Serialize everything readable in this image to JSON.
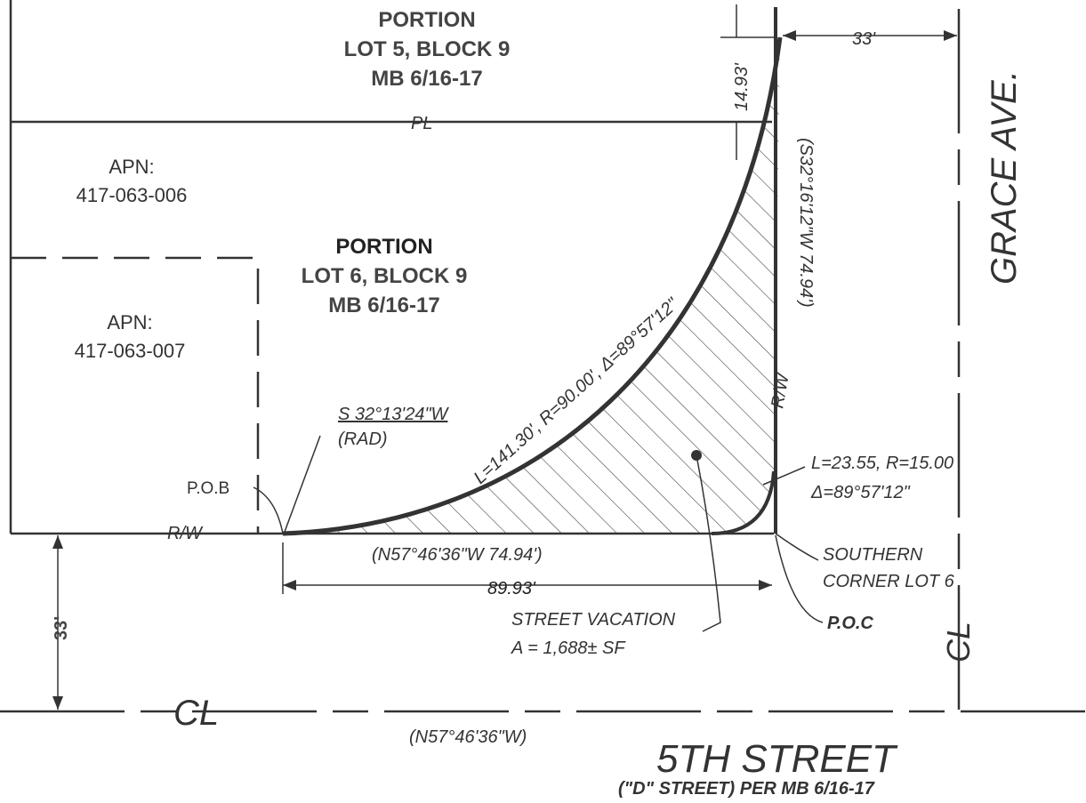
{
  "lot5": {
    "portion": "PORTION",
    "lot": "LOT 5, BLOCK 9",
    "map": "MB 6/16-17"
  },
  "property_line": "PL",
  "apn_006": {
    "label": "APN:",
    "number": "417-063-006"
  },
  "apn_007": {
    "label": "APN:",
    "number": "417-063-007"
  },
  "lot6": {
    "portion": "PORTION",
    "lot": "LOT 6, BLOCK 9",
    "map": "MB 6/16-17"
  },
  "radial": {
    "bearing": "S 32°13'24\"W",
    "note": "(RAD)"
  },
  "pob": "P.O.B",
  "rw_south": "R/W",
  "rw_east": "R/W",
  "curve_main": "L=141.30', R=90.00', Δ=89°57'12\"",
  "east_line": "(S32°16'12\"W 74.94')",
  "dim_north": "14.93'",
  "dim_east_row": "33'",
  "grace": "GRACE AVE.",
  "curve_small": {
    "lengths": "L=23.55, R=15.00",
    "delta": "Δ=89°57'12\""
  },
  "south_line": "(N57°46'36\"W 74.94')",
  "dim_south": "89.93'",
  "southern_corner": {
    "line1": "SOUTHERN",
    "line2": "CORNER LOT 6"
  },
  "poc": "P.O.C",
  "vacation": {
    "title": "STREET VACATION",
    "area": "A = 1,688± SF"
  },
  "dim_south_row": "33'",
  "centerline_street": "CL",
  "centerline_grace": "CL",
  "street_bearing": "(N57°46'36\"W)",
  "street_name": "5TH STREET",
  "street_note": "(\"D\" STREET) PER MB 6/16-17"
}
